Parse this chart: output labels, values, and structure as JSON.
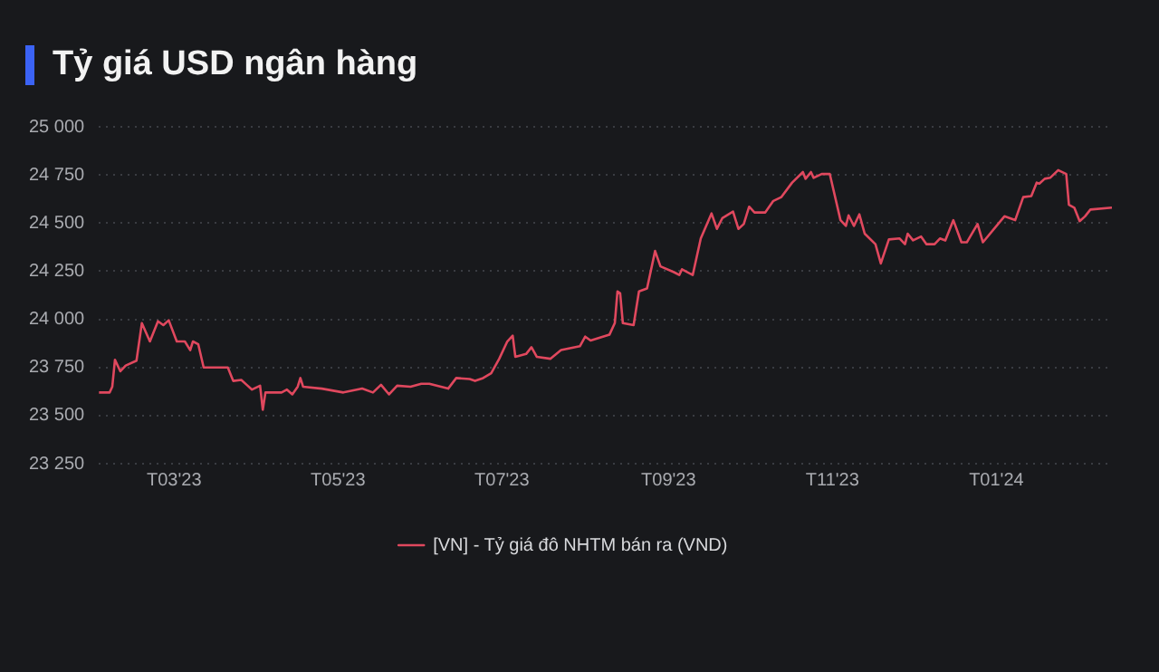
{
  "chart_data": {
    "type": "line",
    "title": "Tỷ giá USD ngân hàng",
    "x": [
      "2023-02-01",
      "2023-02-05",
      "2023-02-06",
      "2023-02-07",
      "2023-02-09",
      "2023-02-11",
      "2023-02-15",
      "2023-02-17",
      "2023-02-20",
      "2023-02-23",
      "2023-02-25",
      "2023-02-27",
      "2023-03-02",
      "2023-03-05",
      "2023-03-07",
      "2023-03-08",
      "2023-03-10",
      "2023-03-12",
      "2023-03-14",
      "2023-03-21",
      "2023-03-23",
      "2023-03-26",
      "2023-03-28",
      "2023-03-30",
      "2023-04-02",
      "2023-04-03",
      "2023-04-04",
      "2023-04-10",
      "2023-04-12",
      "2023-04-14",
      "2023-04-16",
      "2023-04-17",
      "2023-04-18",
      "2023-04-25",
      "2023-05-03",
      "2023-05-10",
      "2023-05-14",
      "2023-05-17",
      "2023-05-20",
      "2023-05-23",
      "2023-05-28",
      "2023-06-01",
      "2023-06-04",
      "2023-06-11",
      "2023-06-14",
      "2023-06-19",
      "2023-06-21",
      "2023-06-24",
      "2023-06-27",
      "2023-06-30",
      "2023-07-03",
      "2023-07-05",
      "2023-07-06",
      "2023-07-10",
      "2023-07-12",
      "2023-07-14",
      "2023-07-19",
      "2023-07-23",
      "2023-07-30",
      "2023-08-01",
      "2023-08-03",
      "2023-08-10",
      "2023-08-12",
      "2023-08-13",
      "2023-08-14",
      "2023-08-15",
      "2023-08-19",
      "2023-08-21",
      "2023-08-24",
      "2023-08-27",
      "2023-08-29",
      "2023-09-03",
      "2023-09-05",
      "2023-09-06",
      "2023-09-10",
      "2023-09-13",
      "2023-09-17",
      "2023-09-19",
      "2023-09-21",
      "2023-09-25",
      "2023-09-27",
      "2023-09-29",
      "2023-10-01",
      "2023-10-03",
      "2023-10-07",
      "2023-10-10",
      "2023-10-13",
      "2023-10-17",
      "2023-10-21",
      "2023-10-22",
      "2023-10-24",
      "2023-10-25",
      "2023-10-28",
      "2023-10-31",
      "2023-11-04",
      "2023-11-06",
      "2023-11-07",
      "2023-11-09",
      "2023-11-11",
      "2023-11-13",
      "2023-11-17",
      "2023-11-19",
      "2023-11-22",
      "2023-11-26",
      "2023-11-28",
      "2023-11-29",
      "2023-12-01",
      "2023-12-04",
      "2023-12-06",
      "2023-12-09",
      "2023-12-11",
      "2023-12-13",
      "2023-12-16",
      "2023-12-19",
      "2023-12-21",
      "2023-12-25",
      "2023-12-27",
      "2024-01-04",
      "2024-01-08",
      "2024-01-11",
      "2024-01-14",
      "2024-01-16",
      "2024-01-17",
      "2024-01-19",
      "2024-01-21",
      "2024-01-24",
      "2024-01-27",
      "2024-01-28",
      "2024-01-30",
      "2024-02-01",
      "2024-02-03",
      "2024-02-05",
      "2024-02-13"
    ],
    "series": [
      {
        "name": "[VN] - Tỷ giá đô NHTM bán ra (VND)",
        "color": "#e0485e",
        "values": [
          23620,
          23620,
          23650,
          23790,
          23730,
          23760,
          23785,
          23980,
          23885,
          23990,
          23970,
          23995,
          23885,
          23885,
          23840,
          23885,
          23870,
          23750,
          23750,
          23750,
          23680,
          23685,
          23660,
          23635,
          23655,
          23530,
          23620,
          23620,
          23635,
          23610,
          23650,
          23695,
          23650,
          23640,
          23620,
          23640,
          23620,
          23660,
          23610,
          23655,
          23650,
          23665,
          23665,
          23640,
          23695,
          23690,
          23680,
          23695,
          23720,
          23795,
          23885,
          23915,
          23805,
          23820,
          23855,
          23805,
          23795,
          23840,
          23860,
          23910,
          23890,
          23920,
          23980,
          24145,
          24135,
          23980,
          23970,
          24145,
          24160,
          24355,
          24275,
          24245,
          24230,
          24260,
          24230,
          24420,
          24550,
          24470,
          24525,
          24560,
          24470,
          24495,
          24585,
          24555,
          24555,
          24615,
          24635,
          24710,
          24765,
          24730,
          24765,
          24735,
          24755,
          24755,
          24515,
          24485,
          24540,
          24485,
          24545,
          24445,
          24390,
          24290,
          24415,
          24420,
          24390,
          24445,
          24410,
          24430,
          24390,
          24390,
          24420,
          24410,
          24515,
          24400,
          24400,
          24495,
          24400,
          24535,
          24515,
          24635,
          24640,
          24710,
          24705,
          24730,
          24735,
          24775,
          24755,
          24595,
          24580,
          24510,
          24535,
          24570,
          24580
        ]
      }
    ],
    "xlim": [
      "2023-02-01",
      "2024-02-13"
    ],
    "xticks": [
      {
        "value": "2023-03-01",
        "label": "T03'23"
      },
      {
        "value": "2023-05-01",
        "label": "T05'23"
      },
      {
        "value": "2023-07-01",
        "label": "T07'23"
      },
      {
        "value": "2023-09-01",
        "label": "T09'23"
      },
      {
        "value": "2023-11-01",
        "label": "T11'23"
      },
      {
        "value": "2024-01-01",
        "label": "T01'24"
      }
    ],
    "ylim": [
      23250,
      25000
    ],
    "yticks": [
      {
        "value": 23250,
        "label": "23 250"
      },
      {
        "value": 23500,
        "label": "23 500"
      },
      {
        "value": 23750,
        "label": "23 750"
      },
      {
        "value": 24000,
        "label": "24 000"
      },
      {
        "value": 24250,
        "label": "24 250"
      },
      {
        "value": 24500,
        "label": "24 500"
      },
      {
        "value": 24750,
        "label": "24 750"
      },
      {
        "value": 25000,
        "label": "25 000"
      }
    ],
    "grid": "y",
    "legend": "bottom",
    "marker": "none",
    "line_style": "solid"
  }
}
